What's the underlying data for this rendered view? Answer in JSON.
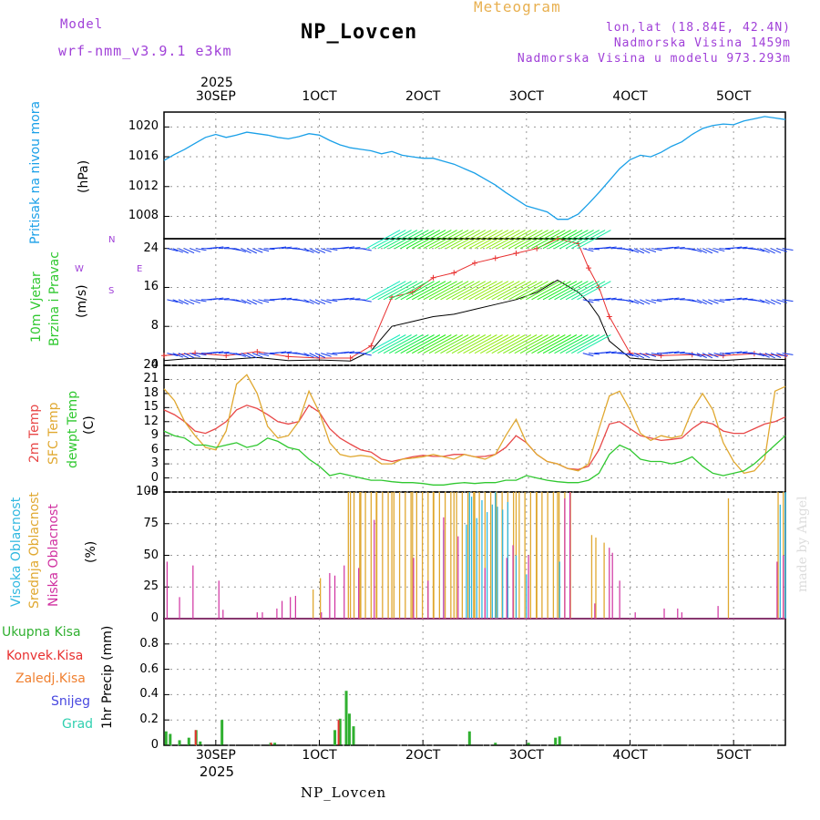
{
  "header": {
    "model_label": "Model",
    "model_name": "wrf-nmm_v3.9.1 e3km",
    "meteogram_label": "Meteogram",
    "station_name": "NP_Lovcen",
    "lonlat": "lon,lat (18.84E, 42.4N)",
    "elevation": "Nadmorska Visina 1459m",
    "model_elevation": "Nadmorska Visina u modelu 973.293m",
    "footer_station": "NP_Lovcen",
    "made_by": "made by Angel"
  },
  "colors": {
    "pressure": "#1aa0e8",
    "wind_speed": "#000000",
    "gust": "#e83030",
    "temp2m": "#e84848",
    "sfc_temp": "#e0a830",
    "dewpoint": "#30c830",
    "cloud_high": "#30b8e0",
    "cloud_mid": "#e0a830",
    "cloud_low": "#d030a0",
    "precip_total": "#30b030",
    "precip_conv": "#e83030",
    "precip_frozen": "#f08030",
    "precip_snow": "#4848e0",
    "precip_graupel": "#30d0b0"
  },
  "chart_data": [
    {
      "type": "line",
      "panel": "pressure",
      "title": "Pritisak na nivou mora",
      "ylabel": "(hPa)",
      "ylim": [
        1005,
        1022
      ],
      "yticks": [
        1008,
        1012,
        1016,
        1020
      ],
      "x": [
        0,
        1,
        2,
        3,
        4,
        5,
        6,
        7,
        8,
        9,
        10,
        11,
        12,
        13,
        14,
        15,
        16,
        17,
        18,
        19,
        20,
        21,
        22,
        23,
        24,
        25,
        26,
        27,
        28,
        29,
        30,
        31,
        32,
        33,
        34,
        35,
        36,
        37,
        38,
        39,
        40,
        41,
        42,
        43,
        44,
        45,
        46,
        47,
        48,
        49,
        50,
        51,
        52,
        53,
        54,
        55,
        56,
        57,
        58,
        59,
        60
      ],
      "values": [
        1015.5,
        1016.3,
        1017.0,
        1017.8,
        1018.6,
        1019.0,
        1018.6,
        1018.9,
        1019.3,
        1019.1,
        1018.9,
        1018.6,
        1018.4,
        1018.7,
        1019.1,
        1018.9,
        1018.2,
        1017.6,
        1017.2,
        1017.0,
        1016.8,
        1016.4,
        1016.7,
        1016.2,
        1016.0,
        1015.8,
        1015.8,
        1015.4,
        1015.0,
        1014.4,
        1013.8,
        1013.0,
        1012.2,
        1011.2,
        1010.3,
        1009.4,
        1009.0,
        1008.6,
        1007.6,
        1007.6,
        1008.3,
        1009.7,
        1011.2,
        1012.8,
        1014.4,
        1015.6,
        1016.2,
        1016.0,
        1016.6,
        1017.4,
        1018.0,
        1019.0,
        1019.8,
        1020.2,
        1020.4,
        1020.3,
        1020.8,
        1021.1,
        1021.4,
        1021.2,
        1021.0
      ],
      "xlabel": ""
    },
    {
      "type": "line",
      "panel": "wind",
      "title": "10m Vjetar Brzina i Pravac",
      "ylabel": "(m/s)",
      "ylim": [
        0,
        26
      ],
      "yticks": [
        0,
        8,
        16,
        24
      ],
      "compass": {
        "north": "N",
        "south": "S",
        "east": "E",
        "west": "W"
      },
      "x": [
        0,
        3,
        6,
        9,
        12,
        15,
        18,
        20,
        22,
        24,
        26,
        28,
        30,
        32,
        34,
        36,
        38,
        40,
        41,
        42,
        43,
        45,
        48,
        51,
        54,
        57,
        60
      ],
      "speed": [
        1.0,
        1.5,
        1.2,
        1.6,
        1.0,
        1.1,
        0.9,
        3,
        8,
        9,
        10,
        10.5,
        11.5,
        12.5,
        13.5,
        15,
        17.5,
        15,
        13,
        10,
        5,
        1.5,
        1.0,
        1.2,
        1.0,
        1.4,
        1.2
      ],
      "gust": [
        2.0,
        2.5,
        2.0,
        2.8,
        1.8,
        1.5,
        1.5,
        4,
        14,
        15,
        18,
        19,
        21,
        22,
        23,
        24,
        26,
        25,
        20,
        16,
        10,
        2.5,
        2.0,
        2.2,
        2.0,
        2.4,
        2.0
      ]
    },
    {
      "type": "line",
      "panel": "temperature",
      "series_labels": [
        "2m Temp",
        "SFC Temp",
        "dewpt Temp"
      ],
      "ylabel": "(C)",
      "ylim": [
        -3,
        24
      ],
      "yticks": [
        -3,
        0,
        3,
        6,
        9,
        12,
        15,
        18,
        21,
        24
      ],
      "x": [
        0,
        1,
        2,
        3,
        4,
        5,
        6,
        7,
        8,
        9,
        10,
        11,
        12,
        13,
        14,
        15,
        16,
        17,
        18,
        19,
        20,
        21,
        22,
        23,
        24,
        25,
        26,
        27,
        28,
        29,
        30,
        31,
        32,
        33,
        34,
        35,
        36,
        37,
        38,
        39,
        40,
        41,
        42,
        43,
        44,
        45,
        46,
        47,
        48,
        49,
        50,
        51,
        52,
        53,
        54,
        55,
        56,
        57,
        58,
        59,
        60
      ],
      "series": [
        {
          "name": "2m Temp",
          "values": [
            14.5,
            13.5,
            12.0,
            10.0,
            9.5,
            10.5,
            12,
            14.5,
            15.5,
            14.8,
            13.5,
            12.0,
            11.5,
            12.0,
            15.5,
            14.0,
            10.5,
            8.5,
            7.2,
            6.0,
            5.5,
            4.0,
            3.5,
            4.0,
            4.5,
            4.8,
            4.6,
            4.6,
            5.0,
            5.0,
            4.5,
            4.6,
            5.0,
            6.5,
            9.0,
            7.5,
            5.0,
            3.5,
            3.0,
            2.0,
            1.8,
            2.5,
            6.0,
            11.5,
            12.0,
            10.5,
            9.0,
            8.5,
            8.0,
            8.2,
            8.5,
            10.5,
            12,
            11.5,
            10.0,
            9.5,
            9.5,
            10.5,
            11.5,
            12.0,
            13.0
          ]
        },
        {
          "name": "SFC Temp",
          "values": [
            19.0,
            16.5,
            12.0,
            9.0,
            6.5,
            6.0,
            10,
            20.0,
            22.0,
            18.0,
            11.0,
            8.5,
            9.0,
            12.0,
            18.5,
            14.0,
            7.5,
            5.0,
            4.5,
            4.8,
            4.5,
            3.0,
            3.0,
            4.0,
            4.2,
            4.5,
            5.0,
            4.5,
            4.0,
            5.0,
            4.5,
            4.0,
            5.0,
            9.0,
            12.5,
            7.5,
            5.0,
            3.5,
            3.0,
            2.0,
            1.5,
            3.0,
            10.5,
            17.5,
            18.5,
            14.5,
            9.5,
            8.0,
            9.0,
            8.5,
            9.0,
            14.5,
            18,
            14.5,
            7.5,
            3.5,
            1.0,
            1.5,
            4.0,
            18.5,
            19.5
          ]
        },
        {
          "name": "dewpt Temp",
          "values": [
            10.0,
            9.0,
            8.5,
            7.0,
            7.0,
            6.5,
            7,
            7.5,
            6.5,
            7.0,
            8.5,
            7.8,
            6.5,
            6.0,
            4.0,
            2.5,
            0.5,
            1.0,
            0.5,
            0.0,
            -0.5,
            -0.5,
            -0.8,
            -1.0,
            -1.0,
            -1.2,
            -1.5,
            -1.5,
            -1.2,
            -1.0,
            -1.2,
            -1.0,
            -1.0,
            -0.5,
            -0.5,
            0.5,
            0.0,
            -0.5,
            -0.8,
            -1.0,
            -1.0,
            -0.5,
            1.0,
            5.0,
            7.0,
            6.0,
            4.0,
            3.5,
            3.5,
            3.0,
            3.5,
            4.5,
            2.5,
            1.0,
            0.5,
            1.0,
            1.5,
            3.0,
            5.0,
            7.0,
            9.0
          ]
        }
      ]
    },
    {
      "type": "bar",
      "panel": "clouds",
      "series_labels": [
        "Visoka Oblacnost",
        "Srednja Oblacnost",
        "Niska Oblacnost"
      ],
      "ylabel": "(%)",
      "ylim": [
        0,
        100
      ],
      "yticks": [
        0,
        25,
        50,
        75,
        100
      ],
      "low": [
        [
          0.3,
          45
        ],
        [
          1.5,
          17
        ],
        [
          2.8,
          42
        ],
        [
          5.3,
          30
        ],
        [
          5.7,
          7
        ],
        [
          9.0,
          5
        ],
        [
          9.5,
          5
        ],
        [
          10.9,
          8
        ],
        [
          11.4,
          14
        ],
        [
          12.2,
          17
        ],
        [
          12.7,
          18
        ],
        [
          15.2,
          5
        ],
        [
          16.0,
          36
        ],
        [
          16.5,
          34
        ],
        [
          17.4,
          42
        ],
        [
          18.8,
          40
        ],
        [
          20.3,
          78
        ],
        [
          24.1,
          48
        ],
        [
          25.5,
          30
        ],
        [
          27.0,
          80
        ],
        [
          28.4,
          65
        ],
        [
          31.0,
          40
        ],
        [
          33.1,
          48
        ],
        [
          33.7,
          58
        ],
        [
          35.2,
          50
        ],
        [
          38.7,
          95
        ],
        [
          39.2,
          100
        ],
        [
          41.6,
          12
        ],
        [
          43.0,
          56
        ],
        [
          43.3,
          52
        ],
        [
          44.0,
          30
        ],
        [
          45.5,
          5
        ],
        [
          48.3,
          8
        ],
        [
          49.6,
          8
        ],
        [
          50.0,
          5
        ],
        [
          53.5,
          10
        ],
        [
          59.2,
          45
        ],
        [
          59.8,
          50
        ]
      ],
      "mid": [
        [
          14.4,
          23
        ],
        [
          15.1,
          32
        ],
        [
          18.0,
          100
        ],
        [
          19.0,
          100
        ],
        [
          20.5,
          100
        ],
        [
          22.0,
          100
        ],
        [
          24.0,
          100
        ],
        [
          26.0,
          100
        ],
        [
          28.0,
          100
        ],
        [
          30.0,
          100
        ],
        [
          32.0,
          100
        ],
        [
          34.0,
          100
        ],
        [
          36.0,
          100
        ],
        [
          38.0,
          100
        ],
        [
          41.3,
          66
        ],
        [
          41.7,
          64
        ],
        [
          42.5,
          60
        ],
        [
          54.5,
          95
        ],
        [
          59.3,
          100
        ],
        [
          59.8,
          100
        ]
      ],
      "high": [
        [
          27.0,
          70
        ],
        [
          29.5,
          100
        ],
        [
          32.0,
          100
        ],
        [
          34.0,
          50
        ],
        [
          35.0,
          35
        ],
        [
          38.2,
          45
        ],
        [
          59.5,
          90
        ],
        [
          60.0,
          100
        ]
      ]
    },
    {
      "type": "bar",
      "panel": "precip",
      "series_labels": [
        "Ukupna Kisa",
        "Konvek.Kisa",
        "Zaledj.Kisa",
        "Snijeg",
        "Grad"
      ],
      "ylabel": "1hr Precip (mm)",
      "ylim": [
        0,
        1.0
      ],
      "yticks": [
        0,
        0.2,
        0.4,
        0.6,
        0.8
      ],
      "total": [
        [
          0.2,
          0.11
        ],
        [
          0.6,
          0.09
        ],
        [
          1.5,
          0.04
        ],
        [
          2.4,
          0.06
        ],
        [
          3.1,
          0.12
        ],
        [
          3.5,
          0.03
        ],
        [
          5.6,
          0.2
        ],
        [
          10.3,
          0.02
        ],
        [
          10.7,
          0.02
        ],
        [
          16.5,
          0.12
        ],
        [
          17.0,
          0.21
        ],
        [
          17.6,
          0.43
        ],
        [
          17.9,
          0.25
        ],
        [
          18.3,
          0.15
        ],
        [
          29.5,
          0.11
        ],
        [
          32.0,
          0.02
        ],
        [
          35.2,
          0.02
        ],
        [
          37.8,
          0.06
        ],
        [
          38.2,
          0.07
        ]
      ],
      "convective": [
        [
          3.1,
          0.12
        ],
        [
          16.9,
          0.2
        ],
        [
          10.4,
          0.02
        ]
      ]
    }
  ],
  "xaxis": {
    "top_year": "2025",
    "ticks": [
      "30SEP",
      "1OCT",
      "2OCT",
      "3OCT",
      "4OCT",
      "5OCT"
    ],
    "bottom_ticks": [
      "30SEP",
      "1OCT",
      "2OCT",
      "3OCT",
      "4OCT",
      "5OCT"
    ],
    "bottom_year": "2025"
  }
}
